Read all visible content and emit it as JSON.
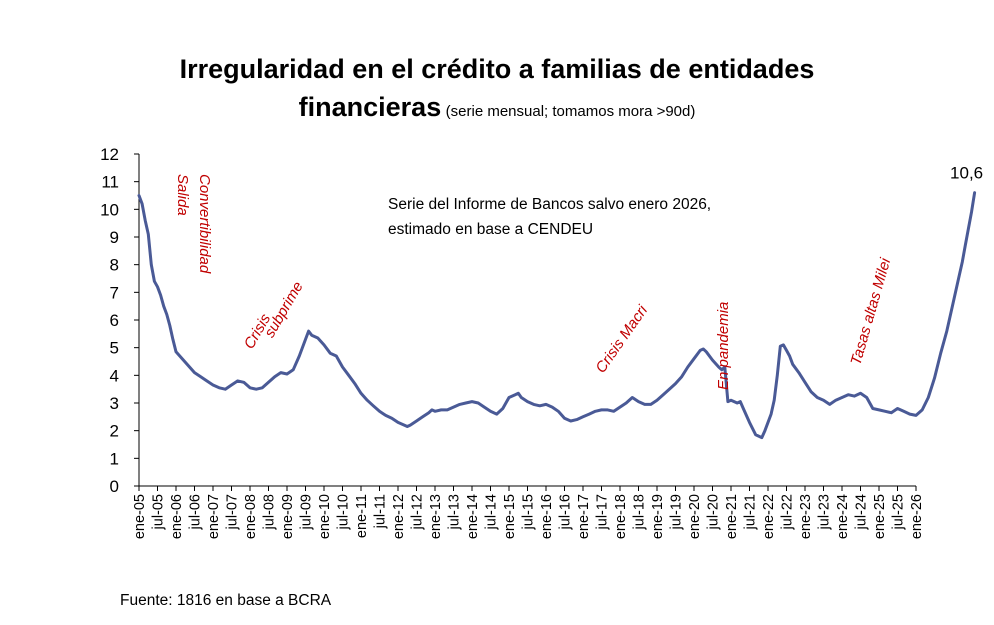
{
  "chart_data": {
    "type": "line",
    "title": "Irregularidad en el crédito a familias de entidades",
    "title_line2": "financieras",
    "subtitle": "(serie mensual; tomamos mora >90d)",
    "xlabel": "",
    "ylabel": "",
    "ylim": [
      0,
      12
    ],
    "yticks": [
      "0",
      "1",
      "2",
      "3",
      "4",
      "5",
      "6",
      "7",
      "8",
      "9",
      "10",
      "11",
      "12"
    ],
    "xticks": [
      "ene-05",
      "jul-05",
      "ene-06",
      "jul-06",
      "ene-07",
      "jul-07",
      "ene-08",
      "jul-08",
      "ene-09",
      "jul-09",
      "ene-10",
      "jul-10",
      "ene-11",
      "jul-11",
      "ene-12",
      "jul-12",
      "ene-13",
      "jul-13",
      "ene-14",
      "jul-14",
      "ene-15",
      "jul-15",
      "ene-16",
      "jul-16",
      "ene-17",
      "jul-17",
      "ene-18",
      "jul-18",
      "ene-19",
      "jul-19",
      "ene-20",
      "jul-20",
      "ene-21",
      "jul-21",
      "ene-22",
      "jul-22",
      "ene-23",
      "jul-23",
      "ene-24",
      "jul-24",
      "ene-25",
      "jul-25",
      "ene-26"
    ],
    "series": [
      {
        "name": "Irregularidad crédito a familias",
        "color": "#4a5a96",
        "points": [
          [
            0,
            10.5
          ],
          [
            1,
            10.2
          ],
          [
            2,
            9.6
          ],
          [
            3,
            9.1
          ],
          [
            4,
            8.0
          ],
          [
            5,
            7.4
          ],
          [
            6,
            7.2
          ],
          [
            7,
            6.9
          ],
          [
            8,
            6.5
          ],
          [
            9,
            6.2
          ],
          [
            10,
            5.8
          ],
          [
            11,
            5.3
          ],
          [
            12,
            4.85
          ],
          [
            14,
            4.6
          ],
          [
            16,
            4.35
          ],
          [
            18,
            4.1
          ],
          [
            20,
            3.95
          ],
          [
            22,
            3.8
          ],
          [
            24,
            3.65
          ],
          [
            26,
            3.55
          ],
          [
            28,
            3.5
          ],
          [
            30,
            3.65
          ],
          [
            32,
            3.8
          ],
          [
            34,
            3.75
          ],
          [
            36,
            3.55
          ],
          [
            38,
            3.5
          ],
          [
            40,
            3.55
          ],
          [
            42,
            3.75
          ],
          [
            44,
            3.95
          ],
          [
            46,
            4.1
          ],
          [
            48,
            4.05
          ],
          [
            50,
            4.2
          ],
          [
            52,
            4.7
          ],
          [
            54,
            5.3
          ],
          [
            55,
            5.6
          ],
          [
            56,
            5.45
          ],
          [
            58,
            5.35
          ],
          [
            60,
            5.1
          ],
          [
            62,
            4.8
          ],
          [
            64,
            4.7
          ],
          [
            66,
            4.3
          ],
          [
            68,
            4.0
          ],
          [
            70,
            3.7
          ],
          [
            72,
            3.35
          ],
          [
            74,
            3.1
          ],
          [
            76,
            2.9
          ],
          [
            78,
            2.7
          ],
          [
            80,
            2.55
          ],
          [
            82,
            2.45
          ],
          [
            84,
            2.3
          ],
          [
            86,
            2.2
          ],
          [
            87,
            2.15
          ],
          [
            88,
            2.2
          ],
          [
            90,
            2.35
          ],
          [
            92,
            2.5
          ],
          [
            94,
            2.65
          ],
          [
            95,
            2.75
          ],
          [
            96,
            2.7
          ],
          [
            98,
            2.75
          ],
          [
            100,
            2.75
          ],
          [
            102,
            2.85
          ],
          [
            104,
            2.95
          ],
          [
            106,
            3.0
          ],
          [
            108,
            3.05
          ],
          [
            110,
            3.0
          ],
          [
            112,
            2.85
          ],
          [
            114,
            2.7
          ],
          [
            116,
            2.6
          ],
          [
            118,
            2.8
          ],
          [
            120,
            3.2
          ],
          [
            122,
            3.3
          ],
          [
            123,
            3.35
          ],
          [
            124,
            3.2
          ],
          [
            126,
            3.05
          ],
          [
            128,
            2.95
          ],
          [
            130,
            2.9
          ],
          [
            132,
            2.95
          ],
          [
            134,
            2.85
          ],
          [
            136,
            2.7
          ],
          [
            138,
            2.45
          ],
          [
            140,
            2.35
          ],
          [
            142,
            2.4
          ],
          [
            144,
            2.5
          ],
          [
            146,
            2.6
          ],
          [
            148,
            2.7
          ],
          [
            150,
            2.75
          ],
          [
            152,
            2.75
          ],
          [
            154,
            2.7
          ],
          [
            156,
            2.85
          ],
          [
            158,
            3.0
          ],
          [
            160,
            3.2
          ],
          [
            162,
            3.05
          ],
          [
            164,
            2.95
          ],
          [
            166,
            2.95
          ],
          [
            168,
            3.1
          ],
          [
            170,
            3.3
          ],
          [
            172,
            3.5
          ],
          [
            174,
            3.7
          ],
          [
            176,
            3.95
          ],
          [
            178,
            4.3
          ],
          [
            180,
            4.6
          ],
          [
            182,
            4.9
          ],
          [
            183,
            4.95
          ],
          [
            184,
            4.85
          ],
          [
            186,
            4.55
          ],
          [
            188,
            4.3
          ],
          [
            189,
            4.2
          ],
          [
            190,
            4.3
          ],
          [
            191,
            3.05
          ],
          [
            192,
            3.1
          ],
          [
            194,
            3.0
          ],
          [
            195,
            3.05
          ],
          [
            196,
            2.8
          ],
          [
            198,
            2.3
          ],
          [
            200,
            1.85
          ],
          [
            202,
            1.75
          ],
          [
            203,
            2.0
          ],
          [
            205,
            2.6
          ],
          [
            206,
            3.1
          ],
          [
            207,
            4.0
          ],
          [
            208,
            5.05
          ],
          [
            209,
            5.1
          ],
          [
            210,
            4.9
          ],
          [
            211,
            4.7
          ],
          [
            212,
            4.4
          ],
          [
            214,
            4.1
          ],
          [
            216,
            3.75
          ],
          [
            218,
            3.4
          ],
          [
            220,
            3.2
          ],
          [
            222,
            3.1
          ],
          [
            224,
            2.95
          ],
          [
            226,
            3.1
          ],
          [
            228,
            3.2
          ],
          [
            230,
            3.3
          ],
          [
            232,
            3.25
          ],
          [
            234,
            3.35
          ],
          [
            236,
            3.2
          ],
          [
            238,
            2.8
          ],
          [
            240,
            2.75
          ],
          [
            242,
            2.7
          ],
          [
            244,
            2.65
          ],
          [
            246,
            2.8
          ],
          [
            248,
            2.7
          ],
          [
            250,
            2.6
          ],
          [
            252,
            2.55
          ],
          [
            254,
            2.75
          ],
          [
            256,
            3.2
          ],
          [
            258,
            3.9
          ],
          [
            260,
            4.8
          ],
          [
            262,
            5.6
          ],
          [
            264,
            6.6
          ],
          [
            266,
            7.6
          ],
          [
            267,
            8.1
          ],
          [
            268,
            8.7
          ],
          [
            269,
            9.3
          ],
          [
            270,
            9.9
          ],
          [
            271,
            10.6
          ]
        ]
      }
    ],
    "point_units": "meses desde ene-05",
    "end_label": "10,6",
    "annotations": [
      {
        "key": "salida",
        "text": "Salida Convertibilidad"
      },
      {
        "key": "subprime",
        "text": "Crisis subprime"
      },
      {
        "key": "macri",
        "text": "Crisis Macri"
      },
      {
        "key": "pandemia",
        "text": "En pandemia"
      },
      {
        "key": "milei",
        "text": "Tasas altas Milei"
      }
    ],
    "note": [
      "Serie del Informe de Bancos salvo enero 2026,",
      "estimado en base a CENDEU"
    ]
  },
  "source": "Fuente: 1816 en base a BCRA"
}
